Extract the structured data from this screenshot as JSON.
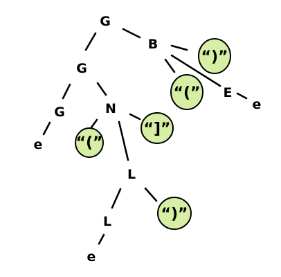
{
  "tree": {
    "nodes": {
      "root": "G",
      "g2": "G",
      "b": "B",
      "n": "N",
      "g3": "G",
      "e_b": "E",
      "l1": "L",
      "l2": "L",
      "e1": "e",
      "e2": "e",
      "e3": "e"
    },
    "leaves": {
      "leaf_b_top": "“)”",
      "leaf_b_mid": "“(”",
      "leaf_n_left": "“(”",
      "leaf_n_right": "“]”",
      "leaf_l": "“)”"
    },
    "leaf_color": "#d6efa4",
    "line_color": "#000000"
  }
}
